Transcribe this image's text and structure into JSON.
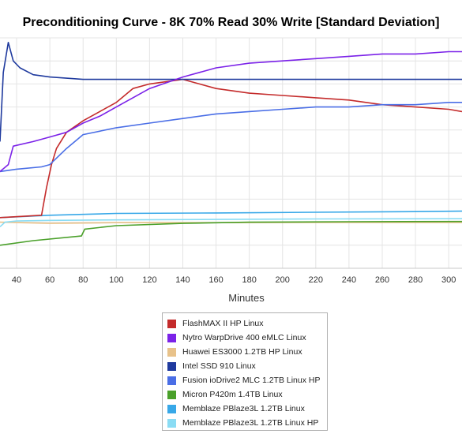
{
  "chart_data": {
    "type": "line",
    "title": "Preconditioning Curve - 8K 70% Read 30% Write [Standard Deviation]",
    "xlabel": "Minutes",
    "ylabel": "",
    "xlim": [
      30,
      308
    ],
    "ylim": [
      0,
      100
    ],
    "x_ticks": [
      40,
      60,
      80,
      100,
      120,
      140,
      160,
      180,
      200,
      220,
      240,
      260,
      280,
      300
    ],
    "x_tick_labels": [
      "40",
      "60",
      "80",
      "100",
      "120",
      "140",
      "160",
      "180",
      "200",
      "220",
      "240",
      "260",
      "280",
      "300"
    ],
    "grid": true,
    "legend_position": "bottom",
    "series": [
      {
        "name": "FlashMAX II HP Linux",
        "color": "#c42b2b",
        "x": [
          30,
          55,
          58,
          61,
          64,
          70,
          80,
          90,
          100,
          110,
          120,
          140,
          160,
          180,
          200,
          220,
          240,
          260,
          280,
          300,
          308
        ],
        "y": [
          22,
          23,
          35,
          45,
          52,
          59,
          64,
          68,
          72,
          78,
          80,
          82,
          78,
          76,
          75,
          74,
          73,
          71,
          70,
          69,
          68
        ]
      },
      {
        "name": "Nytro WarpDrive 400 eMLC Linux",
        "color": "#7b22e8",
        "x": [
          30,
          35,
          38,
          50,
          60,
          70,
          80,
          90,
          100,
          110,
          120,
          140,
          160,
          180,
          200,
          220,
          240,
          260,
          280,
          300,
          308
        ],
        "y": [
          42,
          45,
          53,
          55,
          57,
          59,
          63,
          66,
          70,
          74,
          78,
          83,
          87,
          89,
          90,
          91,
          92,
          93,
          93,
          94,
          94
        ]
      },
      {
        "name": "Huawei ES3000 1.2TB HP Linux",
        "color": "#e8c28a",
        "x": [
          30,
          60,
          100,
          160,
          220,
          308
        ],
        "y": [
          20,
          19.5,
          19.8,
          19.8,
          19.9,
          19.9
        ]
      },
      {
        "name": "Intel SSD 910 Linux",
        "color": "#1f3a9e",
        "x": [
          30,
          32,
          35,
          38,
          42,
          50,
          60,
          80,
          100,
          140,
          180,
          220,
          260,
          300,
          308
        ],
        "y": [
          55,
          85,
          98,
          90,
          87,
          84,
          83,
          82,
          82,
          82,
          82,
          82,
          82,
          82,
          82
        ]
      },
      {
        "name": "Fusion ioDrive2 MLC 1.2TB Linux HP",
        "color": "#4a6ee6",
        "x": [
          30,
          40,
          55,
          60,
          70,
          80,
          100,
          120,
          140,
          160,
          180,
          200,
          220,
          240,
          260,
          280,
          300,
          308
        ],
        "y": [
          42,
          43,
          44,
          45,
          52,
          58,
          61,
          63,
          65,
          67,
          68,
          69,
          70,
          70,
          71,
          71,
          72,
          72
        ]
      },
      {
        "name": "Micron P420m 1.4TB Linux",
        "color": "#4aa02a",
        "x": [
          30,
          50,
          79,
          81,
          100,
          140,
          180,
          240,
          308
        ],
        "y": [
          10,
          12,
          14,
          17,
          18.5,
          19.5,
          20,
          20.2,
          20.3
        ]
      },
      {
        "name": "Memblaze PBlaze3L 1.2TB Linux",
        "color": "#38a8e8",
        "x": [
          30,
          60,
          100,
          160,
          220,
          280,
          308
        ],
        "y": [
          22,
          23,
          23.8,
          24,
          24.3,
          24.6,
          24.8
        ]
      },
      {
        "name": "Memblaze PBlaze3L 1.2TB Linux HP",
        "color": "#8adcf4",
        "x": [
          30,
          33,
          40,
          60,
          100,
          160,
          220,
          308
        ],
        "y": [
          18,
          20,
          20.5,
          20.8,
          21,
          21.2,
          21.4,
          21.5
        ]
      }
    ]
  }
}
